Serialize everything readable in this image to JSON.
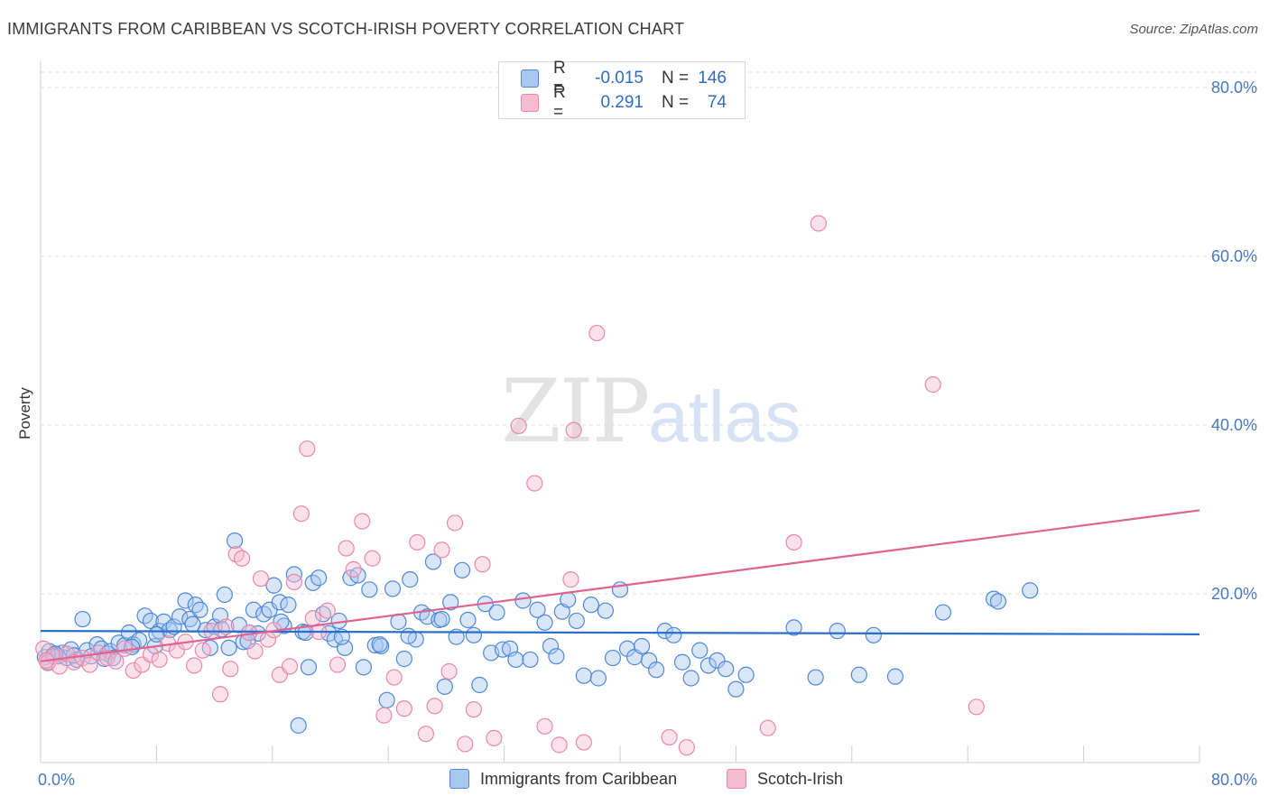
{
  "title": "IMMIGRANTS FROM CARIBBEAN VS SCOTCH-IRISH POVERTY CORRELATION CHART",
  "source": "Source: ZipAtlas.com",
  "watermark": {
    "zip": "ZIP",
    "atlas": "atlas"
  },
  "legend": {
    "rows": [
      {
        "r_label": "R =",
        "r_value": "-0.015",
        "n_label": "N =",
        "n_value": "146"
      },
      {
        "r_label": "R =",
        "r_value": "0.291",
        "n_label": "N =",
        "n_value": "74"
      }
    ]
  },
  "colors": {
    "blue_fill": "#a9c8f0",
    "blue_stroke": "#4f88d8",
    "blue_line": "#2a6fcc",
    "pink_fill": "#f6bdd0",
    "pink_stroke": "#e889aa",
    "pink_line": "#e0628f",
    "grid": "#dcdcdc",
    "tick_label": "#4a78c2"
  },
  "chart_data": {
    "type": "scatter",
    "title": "IMMIGRANTS FROM CARIBBEAN VS SCOTCH-IRISH POVERTY CORRELATION CHART",
    "xlabel": "",
    "ylabel": "Poverty",
    "xlim": [
      0,
      80
    ],
    "ylim": [
      0,
      80
    ],
    "x_tick_labels": [
      "0.0%",
      "80.0%"
    ],
    "y_ticks": [
      20,
      40,
      60,
      80
    ],
    "y_tick_labels": [
      "20.0%",
      "40.0%",
      "60.0%",
      "80.0%"
    ],
    "grid": true,
    "legend_position": "bottom",
    "series": [
      {
        "name": "Immigrants from Caribbean",
        "r": -0.015,
        "n": 146,
        "trend": {
          "x": [
            0,
            80
          ],
          "y": [
            15.6,
            15.2
          ]
        },
        "points": [
          [
            0.3,
            12.5
          ],
          [
            0.6,
            13.2
          ],
          [
            0.9,
            12.8
          ],
          [
            1.2,
            12.6
          ],
          [
            1.5,
            13.0
          ],
          [
            1.8,
            12.4
          ],
          [
            2.1,
            13.4
          ],
          [
            2.5,
            12.2
          ],
          [
            2.9,
            17.0
          ],
          [
            3.2,
            13.3
          ],
          [
            3.5,
            12.6
          ],
          [
            3.9,
            14.0
          ],
          [
            4.2,
            13.5
          ],
          [
            4.6,
            12.9
          ],
          [
            4.8,
            13.2
          ],
          [
            5.0,
            12.4
          ],
          [
            5.4,
            14.2
          ],
          [
            5.8,
            13.9
          ],
          [
            6.1,
            15.4
          ],
          [
            6.4,
            14.0
          ],
          [
            6.8,
            14.5
          ],
          [
            7.2,
            17.4
          ],
          [
            7.6,
            16.8
          ],
          [
            7.9,
            13.8
          ],
          [
            8.2,
            15.6
          ],
          [
            8.5,
            16.7
          ],
          [
            8.9,
            15.7
          ],
          [
            9.2,
            16.1
          ],
          [
            9.6,
            17.3
          ],
          [
            10.0,
            19.2
          ],
          [
            10.3,
            17.0
          ],
          [
            10.7,
            18.7
          ],
          [
            11.0,
            18.1
          ],
          [
            11.4,
            15.7
          ],
          [
            11.7,
            13.6
          ],
          [
            12.0,
            16.1
          ],
          [
            12.4,
            17.4
          ],
          [
            12.7,
            19.9
          ],
          [
            13.0,
            13.6
          ],
          [
            13.4,
            26.3
          ],
          [
            13.7,
            16.3
          ],
          [
            14.0,
            14.3
          ],
          [
            14.4,
            15.4
          ],
          [
            14.7,
            18.1
          ],
          [
            15.0,
            15.3
          ],
          [
            15.4,
            17.6
          ],
          [
            15.8,
            18.1
          ],
          [
            16.1,
            21.0
          ],
          [
            16.5,
            19.0
          ],
          [
            16.8,
            16.2
          ],
          [
            17.1,
            18.7
          ],
          [
            17.5,
            22.3
          ],
          [
            17.8,
            4.4
          ],
          [
            18.1,
            15.5
          ],
          [
            18.5,
            11.3
          ],
          [
            18.8,
            21.3
          ],
          [
            19.2,
            21.9
          ],
          [
            19.5,
            17.6
          ],
          [
            19.9,
            15.3
          ],
          [
            20.3,
            14.6
          ],
          [
            20.6,
            16.8
          ],
          [
            21.0,
            13.6
          ],
          [
            21.4,
            21.9
          ],
          [
            21.9,
            22.2
          ],
          [
            22.3,
            11.3
          ],
          [
            22.7,
            20.5
          ],
          [
            23.1,
            13.9
          ],
          [
            23.5,
            13.8
          ],
          [
            23.9,
            7.4
          ],
          [
            24.3,
            20.6
          ],
          [
            24.7,
            16.7
          ],
          [
            25.1,
            12.3
          ],
          [
            25.5,
            21.7
          ],
          [
            25.9,
            14.6
          ],
          [
            26.3,
            17.8
          ],
          [
            26.7,
            17.3
          ],
          [
            27.1,
            23.8
          ],
          [
            27.5,
            16.9
          ],
          [
            27.9,
            9.0
          ],
          [
            28.3,
            19.0
          ],
          [
            28.7,
            14.9
          ],
          [
            29.1,
            22.8
          ],
          [
            29.5,
            16.9
          ],
          [
            29.9,
            15.1
          ],
          [
            30.3,
            9.2
          ],
          [
            30.7,
            18.8
          ],
          [
            31.1,
            13.0
          ],
          [
            31.5,
            17.8
          ],
          [
            31.9,
            13.4
          ],
          [
            32.4,
            13.5
          ],
          [
            32.8,
            12.2
          ],
          [
            33.3,
            19.2
          ],
          [
            33.8,
            12.2
          ],
          [
            34.3,
            18.1
          ],
          [
            34.8,
            16.6
          ],
          [
            35.2,
            13.8
          ],
          [
            35.6,
            12.6
          ],
          [
            36.0,
            17.9
          ],
          [
            36.4,
            19.3
          ],
          [
            37.0,
            16.8
          ],
          [
            37.5,
            10.3
          ],
          [
            38.0,
            18.7
          ],
          [
            38.5,
            10.0
          ],
          [
            39.0,
            18.0
          ],
          [
            39.5,
            12.4
          ],
          [
            40.0,
            20.5
          ],
          [
            40.5,
            13.5
          ],
          [
            41.0,
            12.5
          ],
          [
            41.5,
            13.8
          ],
          [
            42.0,
            12.1
          ],
          [
            42.5,
            11.0
          ],
          [
            43.1,
            15.6
          ],
          [
            43.7,
            15.1
          ],
          [
            44.3,
            11.9
          ],
          [
            44.9,
            10.0
          ],
          [
            45.5,
            13.3
          ],
          [
            46.1,
            11.5
          ],
          [
            46.7,
            12.1
          ],
          [
            47.3,
            11.1
          ],
          [
            48.0,
            8.7
          ],
          [
            48.7,
            10.4
          ],
          [
            52.0,
            16.0
          ],
          [
            53.5,
            10.1
          ],
          [
            55.0,
            15.6
          ],
          [
            56.5,
            10.4
          ],
          [
            57.5,
            15.1
          ],
          [
            59.0,
            10.2
          ],
          [
            62.3,
            17.8
          ],
          [
            65.8,
            19.4
          ],
          [
            66.1,
            19.1
          ],
          [
            68.3,
            20.4
          ],
          [
            0.5,
            11.9
          ],
          [
            1.0,
            12.9
          ],
          [
            2.3,
            12.7
          ],
          [
            4.4,
            12.3
          ],
          [
            6.3,
            13.7
          ],
          [
            8.0,
            15.2
          ],
          [
            10.5,
            16.4
          ],
          [
            12.5,
            15.8
          ],
          [
            14.3,
            14.4
          ],
          [
            16.6,
            16.7
          ],
          [
            18.3,
            15.4
          ],
          [
            20.8,
            14.9
          ],
          [
            23.4,
            14.0
          ],
          [
            25.4,
            15.0
          ],
          [
            27.7,
            17.0
          ]
        ]
      },
      {
        "name": "Scotch-Irish",
        "r": 0.291,
        "n": 74,
        "trend": {
          "x": [
            0,
            80
          ],
          "y": [
            12.0,
            29.9
          ]
        },
        "points": [
          [
            0.2,
            13.5
          ],
          [
            0.5,
            11.8
          ],
          [
            0.9,
            12.6
          ],
          [
            1.3,
            11.4
          ],
          [
            1.8,
            12.9
          ],
          [
            2.3,
            11.9
          ],
          [
            2.9,
            12.4
          ],
          [
            3.4,
            11.6
          ],
          [
            4.0,
            13.0
          ],
          [
            4.6,
            12.4
          ],
          [
            5.2,
            12.0
          ],
          [
            5.8,
            13.5
          ],
          [
            6.4,
            10.9
          ],
          [
            7.0,
            11.6
          ],
          [
            7.6,
            12.8
          ],
          [
            8.2,
            12.2
          ],
          [
            8.8,
            14.1
          ],
          [
            9.4,
            13.3
          ],
          [
            10.0,
            14.3
          ],
          [
            10.6,
            11.5
          ],
          [
            11.2,
            13.3
          ],
          [
            11.8,
            15.6
          ],
          [
            12.4,
            8.1
          ],
          [
            12.8,
            16.1
          ],
          [
            13.1,
            11.1
          ],
          [
            13.5,
            24.7
          ],
          [
            13.9,
            24.2
          ],
          [
            14.4,
            15.4
          ],
          [
            14.8,
            13.2
          ],
          [
            15.2,
            21.8
          ],
          [
            15.7,
            14.6
          ],
          [
            16.1,
            15.7
          ],
          [
            16.5,
            10.4
          ],
          [
            17.2,
            11.4
          ],
          [
            17.5,
            21.4
          ],
          [
            18.0,
            29.5
          ],
          [
            18.4,
            37.2
          ],
          [
            18.8,
            17.1
          ],
          [
            19.2,
            15.5
          ],
          [
            19.8,
            18.0
          ],
          [
            20.5,
            11.6
          ],
          [
            21.1,
            25.4
          ],
          [
            21.6,
            22.9
          ],
          [
            22.2,
            28.6
          ],
          [
            22.9,
            24.2
          ],
          [
            23.7,
            5.6
          ],
          [
            24.4,
            10.1
          ],
          [
            25.1,
            6.4
          ],
          [
            26.0,
            26.1
          ],
          [
            26.6,
            3.4
          ],
          [
            27.2,
            6.7
          ],
          [
            27.7,
            25.2
          ],
          [
            28.2,
            10.8
          ],
          [
            28.6,
            28.4
          ],
          [
            29.3,
            2.2
          ],
          [
            29.9,
            6.3
          ],
          [
            30.5,
            23.5
          ],
          [
            31.3,
            2.9
          ],
          [
            33.0,
            39.9
          ],
          [
            34.1,
            33.1
          ],
          [
            34.8,
            4.3
          ],
          [
            35.8,
            2.1
          ],
          [
            36.6,
            21.7
          ],
          [
            36.8,
            39.4
          ],
          [
            37.5,
            2.4
          ],
          [
            38.4,
            50.9
          ],
          [
            43.4,
            3.0
          ],
          [
            44.6,
            1.8
          ],
          [
            50.2,
            4.1
          ],
          [
            52.0,
            26.1
          ],
          [
            53.7,
            63.9
          ],
          [
            61.6,
            44.8
          ],
          [
            64.6,
            6.6
          ],
          [
            0.4,
            12.1
          ]
        ]
      }
    ]
  },
  "bottom_legend": [
    {
      "label": "Immigrants from Caribbean"
    },
    {
      "label": "Scotch-Irish"
    }
  ]
}
